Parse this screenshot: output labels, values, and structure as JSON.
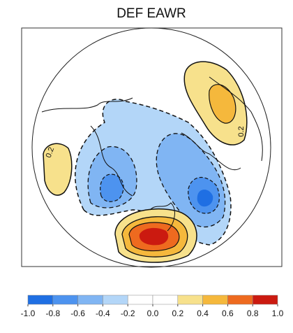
{
  "title": "DEF EAWR",
  "colorbar": {
    "ticks": [
      {
        "value": -1.0,
        "label": "-1.0"
      },
      {
        "value": -0.8,
        "label": "-0.8"
      },
      {
        "value": -0.6,
        "label": "-0.6"
      },
      {
        "value": -0.4,
        "label": "-0.4"
      },
      {
        "value": -0.2,
        "label": "-0.2"
      },
      {
        "value": 0.0,
        "label": "0.0"
      },
      {
        "value": 0.2,
        "label": "0.2"
      },
      {
        "value": 0.4,
        "label": "0.4"
      },
      {
        "value": 0.6,
        "label": "0.6"
      },
      {
        "value": 0.8,
        "label": "0.8"
      },
      {
        "value": 1.0,
        "label": "1.0"
      }
    ],
    "colors": [
      "#1f6fe3",
      "#4d93ef",
      "#80b5f3",
      "#b3d6f8",
      "#ffffff",
      "#ffffff",
      "#f7e18c",
      "#f5b83c",
      "#ee6a1f",
      "#cb1a10"
    ]
  },
  "contour_labels": [
    "0.2",
    "0.2"
  ]
}
